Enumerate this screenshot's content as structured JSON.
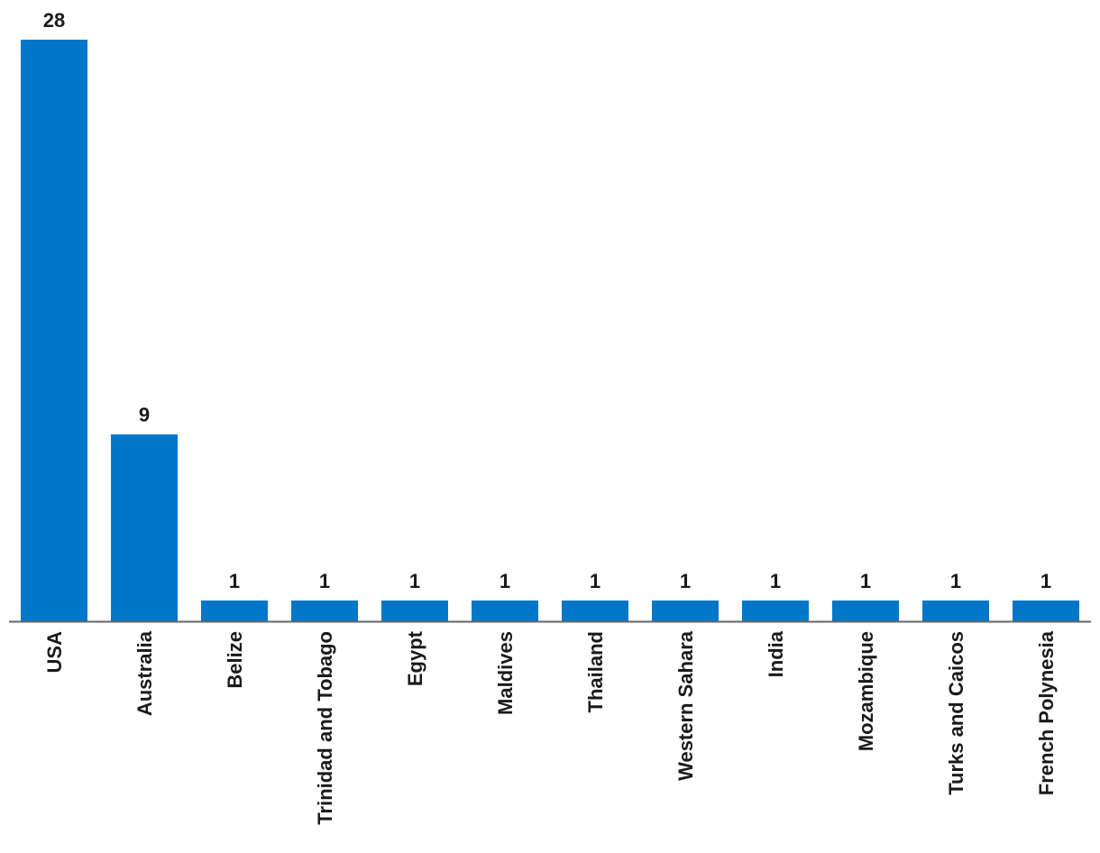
{
  "chart_data": {
    "type": "bar",
    "categories": [
      "USA",
      "Australia",
      "Belize",
      "Trinidad and Tobago",
      "Egypt",
      "Maldives",
      "Thailand",
      "Western Sahara",
      "India",
      "Mozambique",
      "Turks and Caicos",
      "French Polynesia"
    ],
    "values": [
      28,
      9,
      1,
      1,
      1,
      1,
      1,
      1,
      1,
      1,
      1,
      1
    ],
    "title": "",
    "xlabel": "",
    "ylabel": "",
    "ylim": [
      0,
      28
    ],
    "grid": false,
    "legend": "none",
    "bar_color": "#0077c8",
    "axis_color": "#666666",
    "data_labels": true
  }
}
